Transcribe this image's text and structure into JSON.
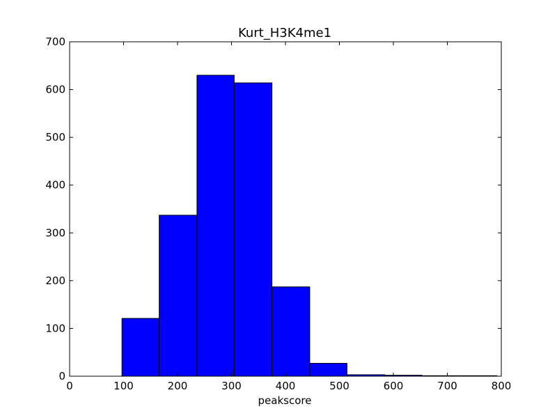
{
  "chart_data": {
    "type": "bar",
    "title": "Kurt_H3K4me1",
    "xlabel": "peakscore",
    "ylabel": "",
    "xlim": [
      0,
      800
    ],
    "ylim": [
      0,
      700
    ],
    "x_ticks": [
      0,
      100,
      200,
      300,
      400,
      500,
      600,
      700,
      800
    ],
    "y_ticks": [
      0,
      100,
      200,
      300,
      400,
      500,
      600,
      700
    ],
    "bins": [
      {
        "start": 97,
        "end": 166,
        "value": 121
      },
      {
        "start": 166,
        "end": 236,
        "value": 337
      },
      {
        "start": 236,
        "end": 305,
        "value": 630
      },
      {
        "start": 305,
        "end": 375,
        "value": 614
      },
      {
        "start": 375,
        "end": 445,
        "value": 187
      },
      {
        "start": 445,
        "end": 514,
        "value": 27
      },
      {
        "start": 514,
        "end": 584,
        "value": 3
      },
      {
        "start": 584,
        "end": 653,
        "value": 2
      },
      {
        "start": 653,
        "end": 723,
        "value": 1
      },
      {
        "start": 723,
        "end": 792,
        "value": 1
      }
    ],
    "bar_color": "#0000ff",
    "edge_color": "#000000",
    "grid": false
  }
}
